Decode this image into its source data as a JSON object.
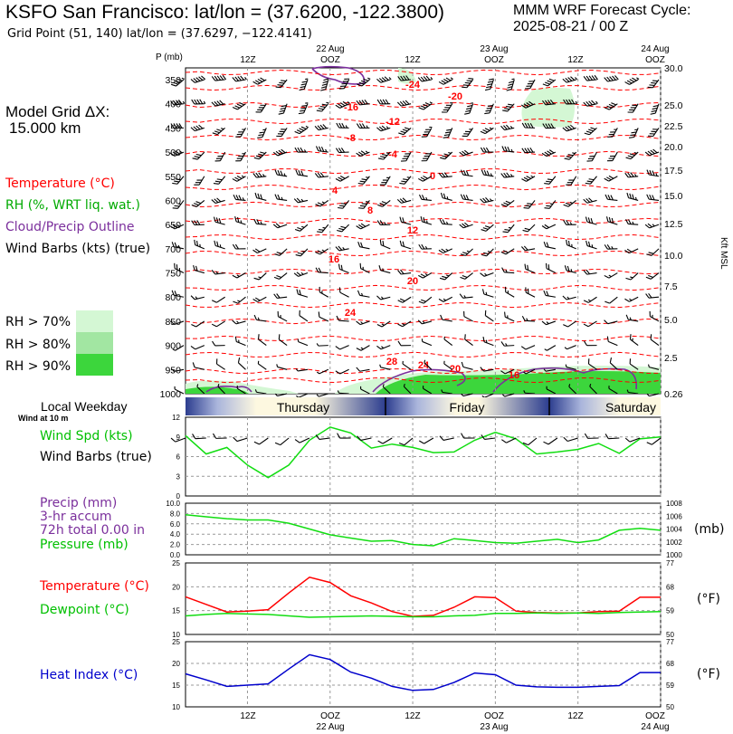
{
  "header": {
    "title": "KSFO San Francisco:  lat/lon = (37.6200, -122.3800)",
    "subtitle": "Grid Point (51, 140) lat/lon = (37.6297, −122.4141)",
    "cycle_line1": "MMM WRF Forecast Cycle:",
    "cycle_line2": "2025-08-21 / 00  Z"
  },
  "model": {
    "line1": "Model Grid ΔX:",
    "line2": "15.000 km"
  },
  "colors": {
    "temperature": "#ff0000",
    "rh": "#00aa00",
    "cloud": "#7b2f9c",
    "heat_index": "#0000cc",
    "rh70": "#d4f7d4",
    "rh80": "#a2e6a2",
    "rh90": "#3cd63c"
  },
  "legend": {
    "temperature": "Temperature (°C)",
    "rh": "RH (%, WRT liq. wat.)",
    "cloud": "Cloud/Precip Outline",
    "wind": "Wind Barbs (kts) (true)",
    "rh70": "RH > 70%",
    "rh80": "RH > 80%",
    "rh90": "RH > 90%"
  },
  "time_axis": {
    "top_dates": [
      "22 Aug",
      "23 Aug",
      "24 Aug"
    ],
    "tick_labels": [
      "12Z",
      "OOZ",
      "12Z",
      "OOZ",
      "12Z",
      "OOZ"
    ]
  },
  "panels": {
    "sounding": {
      "p_label": "P (mb)",
      "km_label": "Kft MSL"
    },
    "weekday": {
      "label": "Local Weekday",
      "sub": "Wind at 10 m",
      "days": [
        "Thursday",
        "Friday",
        "Saturday"
      ]
    },
    "wind": {
      "label1": "Wind Spd (kts)",
      "label2": "Wind Barbs (true)"
    },
    "precip": {
      "l1": "Precip (mm)",
      "l2": "3-hr accum",
      "l3": "72h total 0.00 in",
      "l4": "Pressure (mb)",
      "unit": "(mb)"
    },
    "temp": {
      "l1": "Temperature (°C)",
      "l2": "Dewpoint (°C)",
      "unit": "(°F)"
    },
    "heat": {
      "l1": "Heat Index (°C)",
      "unit": "(°F)"
    }
  },
  "chart_data": [
    {
      "type": "line",
      "name": "time-height cross-section",
      "ylabel": "P (mb)",
      "y_ticks": [
        "350",
        "400",
        "450",
        "500",
        "550",
        "600",
        "650",
        "700",
        "750",
        "800",
        "850",
        "900",
        "950",
        "1000"
      ],
      "y2_ticks": [
        "30.0",
        "25.0",
        "22.5",
        "20.0",
        "17.5",
        "15.0",
        "12.5",
        "10.0",
        "7.5",
        "5.0",
        "2.5",
        "0.26"
      ],
      "isotherm_labels": [
        "-24",
        "-20",
        "-16",
        "-12",
        "-8",
        "-4",
        "0",
        "4",
        "8",
        "12",
        "16",
        "20",
        "24",
        "28",
        "24",
        "20",
        "16"
      ],
      "x_hours": [
        3,
        6,
        9,
        12,
        15,
        18,
        21,
        24,
        27,
        30,
        33,
        36,
        39,
        42,
        45,
        48,
        51,
        54,
        57,
        60,
        63,
        66,
        69,
        72
      ],
      "grid": true
    },
    {
      "type": "line",
      "name": "10 m wind",
      "ylim": [
        0,
        12
      ],
      "y_ticks": [
        "0",
        "3",
        "6",
        "9",
        "12"
      ],
      "x_hours": [
        3,
        6,
        9,
        12,
        15,
        18,
        21,
        24,
        27,
        30,
        33,
        36,
        39,
        42,
        45,
        48,
        51,
        54,
        57,
        60,
        63,
        66,
        69,
        72
      ],
      "series": [
        {
          "name": "Wind Spd (kts)",
          "values": [
            9.2,
            6.4,
            7.4,
            4.7,
            2.8,
            4.7,
            8.5,
            10.5,
            9.6,
            7.3,
            7.9,
            7.4,
            6.6,
            6.7,
            8.5,
            9.7,
            8.7,
            6.4,
            6.7,
            7.1,
            8.0,
            6.5,
            8.7,
            9.0
          ]
        }
      ]
    },
    {
      "type": "line",
      "name": "precip and pressure",
      "ylim": [
        0,
        10
      ],
      "y_ticks": [
        "0.0",
        "2.0",
        "4.0",
        "6.0",
        "8.0",
        "10.0"
      ],
      "y2_ticks": [
        "1000",
        "1002",
        "1004",
        "1006",
        "1008"
      ],
      "x_hours": [
        3,
        6,
        9,
        12,
        15,
        18,
        21,
        24,
        27,
        30,
        33,
        36,
        39,
        42,
        45,
        48,
        51,
        54,
        57,
        60,
        63,
        66,
        69,
        72
      ],
      "series": [
        {
          "name": "Pressure (mb)",
          "values": [
            1006.2,
            1005.9,
            1005.6,
            1005.4,
            1005.4,
            1004.9,
            1004.0,
            1003.1,
            1002.6,
            1002.1,
            1002.2,
            1001.6,
            1001.4,
            1002.5,
            1002.2,
            1001.9,
            1001.8,
            1002.1,
            1002.4,
            1001.9,
            1002.3,
            1003.8,
            1004.1,
            1003.8
          ]
        },
        {
          "name": "Precip (mm)",
          "values": [
            0,
            0,
            0,
            0,
            0,
            0,
            0,
            0,
            0,
            0,
            0,
            0,
            0,
            0,
            0,
            0,
            0,
            0,
            0,
            0,
            0,
            0,
            0,
            0
          ]
        }
      ]
    },
    {
      "type": "line",
      "name": "temperature and dewpoint",
      "ylim": [
        10,
        25
      ],
      "y_ticks": [
        "10",
        "15",
        "20",
        "25"
      ],
      "y2_ticks": [
        "50",
        "59",
        "68",
        "77"
      ],
      "x_hours": [
        3,
        6,
        9,
        12,
        15,
        18,
        21,
        24,
        27,
        30,
        33,
        36,
        39,
        42,
        45,
        48,
        51,
        54,
        57,
        60,
        63,
        66,
        69,
        72
      ],
      "series": [
        {
          "name": "Temperature (°C)",
          "values": [
            17.9,
            16.3,
            14.7,
            14.9,
            15.2,
            18.7,
            22.0,
            20.9,
            18.1,
            16.6,
            14.8,
            13.8,
            14.0,
            15.7,
            17.9,
            17.7,
            14.9,
            14.6,
            14.5,
            14.5,
            14.8,
            14.9,
            17.8,
            17.8
          ]
        },
        {
          "name": "Dewpoint (°C)",
          "values": [
            13.9,
            14.2,
            14.4,
            14.3,
            14.2,
            13.9,
            13.6,
            13.7,
            13.8,
            13.9,
            13.8,
            13.7,
            13.7,
            13.9,
            14.0,
            14.4,
            14.4,
            14.5,
            14.4,
            14.5,
            14.4,
            14.6,
            14.7,
            14.8
          ]
        }
      ]
    },
    {
      "type": "line",
      "name": "heat index",
      "ylim": [
        10,
        25
      ],
      "y_ticks": [
        "10",
        "15",
        "20",
        "25"
      ],
      "y2_ticks": [
        "50",
        "59",
        "68",
        "77"
      ],
      "x_hours": [
        3,
        6,
        9,
        12,
        15,
        18,
        21,
        24,
        27,
        30,
        33,
        36,
        39,
        42,
        45,
        48,
        51,
        54,
        57,
        60,
        63,
        66,
        69,
        72
      ],
      "series": [
        {
          "name": "Heat Index (°C)",
          "values": [
            17.6,
            16.2,
            14.7,
            15.0,
            15.3,
            18.7,
            22.0,
            20.9,
            18.0,
            16.6,
            14.7,
            13.8,
            14.0,
            15.6,
            17.8,
            17.4,
            15.0,
            14.6,
            14.5,
            14.5,
            14.7,
            14.9,
            17.9,
            17.9
          ]
        }
      ]
    }
  ]
}
